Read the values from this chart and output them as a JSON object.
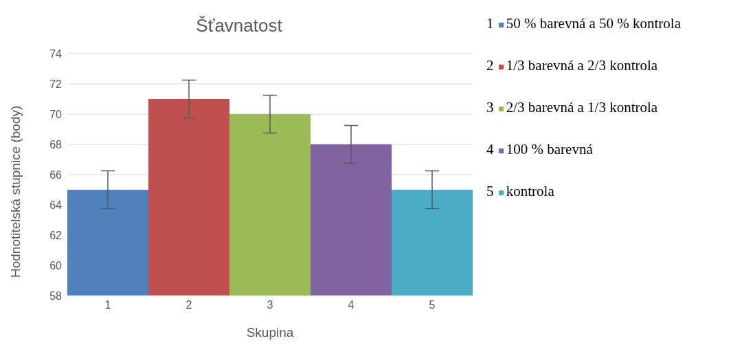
{
  "chart_data": {
    "type": "bar",
    "title": "Šťavnatost",
    "xlabel": "Skupina",
    "ylabel": "Hodnotitelská stupnice (body)",
    "categories": [
      "1",
      "2",
      "3",
      "4",
      "5"
    ],
    "stacked": true,
    "series": [
      {
        "name": "50 % barevná a 50 % kontrola",
        "color": "#4f81bd",
        "values": [
          65,
          null,
          null,
          null,
          null
        ],
        "errors": [
          1.25,
          null,
          null,
          null,
          null
        ]
      },
      {
        "name": "1/3 barevná a 2/3 kontrola",
        "color": "#c0504d",
        "values": [
          null,
          71,
          null,
          null,
          null
        ],
        "errors": [
          null,
          1.25,
          null,
          null,
          null
        ]
      },
      {
        "name": "2/3 barevná a 1/3 kontrola",
        "color": "#9bbb59",
        "values": [
          null,
          null,
          70,
          null,
          null
        ],
        "errors": [
          null,
          null,
          1.25,
          null,
          null
        ]
      },
      {
        "name": "100 % barevná",
        "color": "#8064a2",
        "values": [
          null,
          null,
          null,
          68,
          null
        ],
        "errors": [
          null,
          null,
          null,
          1.25,
          null
        ]
      },
      {
        "name": "kontrola",
        "color": "#4bacc6",
        "values": [
          null,
          null,
          null,
          null,
          65
        ],
        "errors": [
          null,
          null,
          null,
          null,
          1.25
        ]
      }
    ],
    "ylim": [
      58,
      74
    ],
    "yticks": [
      58,
      60,
      62,
      64,
      66,
      68,
      70,
      72,
      74
    ],
    "grid": "y",
    "legend": "right"
  }
}
